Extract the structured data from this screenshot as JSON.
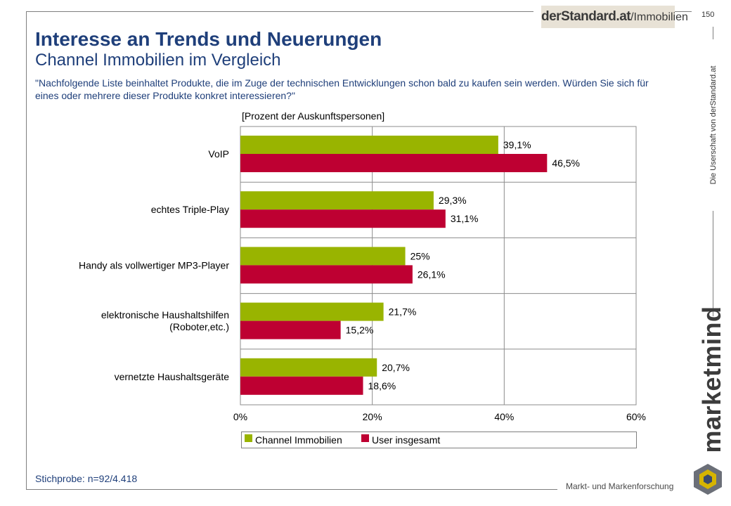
{
  "header": {
    "brand_main": "derStandard.at",
    "brand_suffix": "/Immobilien",
    "page_number": "150"
  },
  "title": "Interesse an Trends und Neuerungen",
  "subtitle": "Channel Immobilien im Vergleich",
  "question": "\"Nachfolgende Liste beinhaltet Produkte, die im Zuge der technischen Entwicklungen schon bald zu kaufen sein werden. Würden Sie sich für eines oder mehrere dieser Produkte konkret interessieren?\"",
  "unit_label": "[Prozent der Auskunftspersonen]",
  "footnote": "Stichprobe: n=92/4.418",
  "side": {
    "ownership": "Die Userschaft von derStandard.at",
    "logo_word": "marketmind",
    "tagline": "Markt- und Markenforschung"
  },
  "chart_data": {
    "type": "bar",
    "orientation": "horizontal",
    "categories": [
      [
        "VoIP"
      ],
      [
        "echtes Triple-Play"
      ],
      [
        "Handy als vollwertiger MP3-Player"
      ],
      [
        "elektronische Haushaltshilfen",
        "(Roboter,etc.)"
      ],
      [
        "vernetzte Haushaltsgeräte"
      ]
    ],
    "series": [
      {
        "name": "Channel Immobilien",
        "color": "#99b400",
        "values": [
          39.1,
          29.3,
          25,
          21.7,
          20.7
        ],
        "labels": [
          "39,1%",
          "29,3%",
          "25%",
          "21,7%",
          "20,7%"
        ]
      },
      {
        "name": "User insgesamt",
        "color": "#be0032",
        "values": [
          46.5,
          31.1,
          26.1,
          15.2,
          18.6
        ],
        "labels": [
          "46,5%",
          "31,1%",
          "26,1%",
          "15,2%",
          "18,6%"
        ]
      }
    ],
    "xlim": [
      0,
      60
    ],
    "xticks": [
      0,
      20,
      40,
      60
    ],
    "xtick_labels": [
      "0%",
      "20%",
      "40%",
      "60%"
    ],
    "grid": true,
    "legend": "bottom"
  }
}
